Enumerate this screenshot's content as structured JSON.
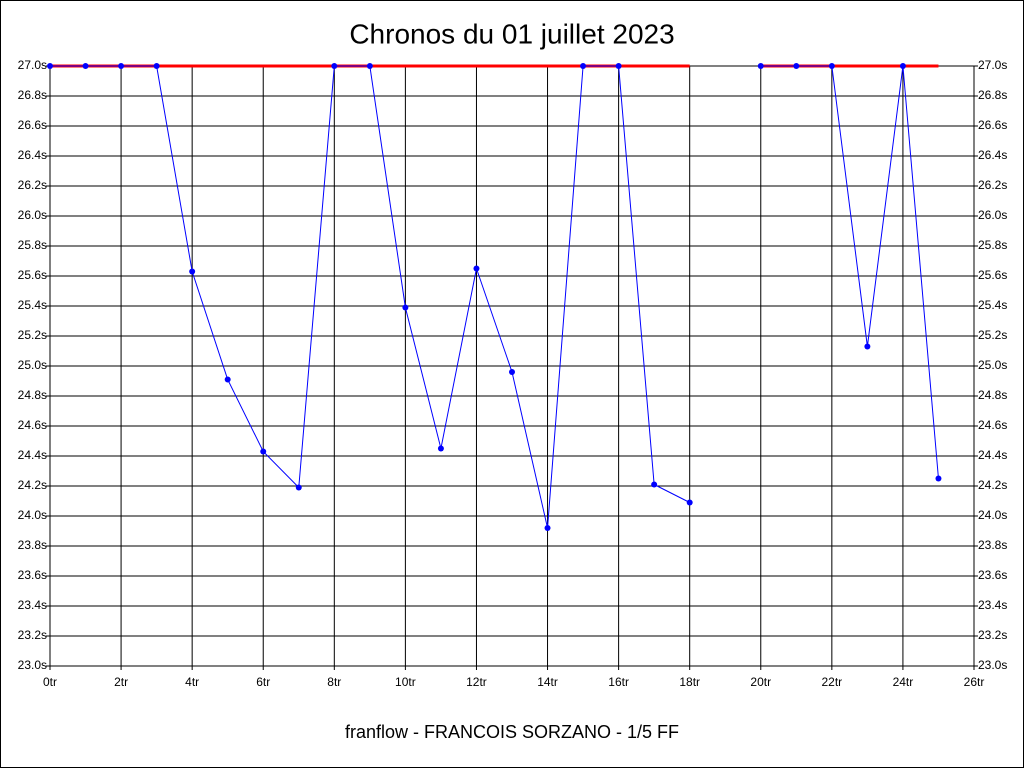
{
  "chart_data": {
    "type": "line",
    "title": "Chronos du 01 juillet 2023",
    "footer": "franflow - FRANCOIS SORZANO - 1/5 FF",
    "x": [
      0,
      1,
      2,
      3,
      4,
      5,
      6,
      7,
      8,
      9,
      10,
      11,
      12,
      13,
      14,
      15,
      16,
      17,
      18,
      19,
      20,
      21,
      22,
      23,
      24,
      25
    ],
    "series": [
      {
        "color": "#ff0000",
        "values": [
          27.0,
          27.0,
          27.0,
          27.0,
          27.0,
          27.0,
          27.0,
          27.0,
          27.0,
          27.0,
          27.0,
          27.0,
          27.0,
          27.0,
          27.0,
          27.0,
          27.0,
          27.0,
          27.0,
          null,
          27.0,
          27.0,
          27.0,
          27.0,
          27.0,
          27.0
        ]
      },
      {
        "color": "#0000ff",
        "values": [
          27.0,
          27.0,
          27.0,
          27.0,
          25.63,
          24.91,
          24.43,
          24.19,
          27.0,
          27.0,
          25.39,
          24.45,
          25.65,
          24.96,
          23.92,
          27.0,
          27.0,
          24.21,
          24.09,
          null,
          27.0,
          27.0,
          27.0,
          25.13,
          27.0,
          24.25
        ]
      }
    ],
    "xlim": [
      0,
      26
    ],
    "xticks": [
      {
        "value": 0,
        "label": "0tr"
      },
      {
        "value": 2,
        "label": "2tr"
      },
      {
        "value": 4,
        "label": "4tr"
      },
      {
        "value": 6,
        "label": "6tr"
      },
      {
        "value": 8,
        "label": "8tr"
      },
      {
        "value": 10,
        "label": "10tr"
      },
      {
        "value": 12,
        "label": "12tr"
      },
      {
        "value": 14,
        "label": "14tr"
      },
      {
        "value": 16,
        "label": "16tr"
      },
      {
        "value": 18,
        "label": "18tr"
      },
      {
        "value": 20,
        "label": "20tr"
      },
      {
        "value": 22,
        "label": "22tr"
      },
      {
        "value": 24,
        "label": "24tr"
      },
      {
        "value": 26,
        "label": "26tr"
      }
    ],
    "ylim": [
      23.0,
      27.0
    ],
    "yticks": [
      {
        "value": 23.0,
        "label": "23.0s"
      },
      {
        "value": 23.2,
        "label": "23.2s"
      },
      {
        "value": 23.4,
        "label": "23.4s"
      },
      {
        "value": 23.6,
        "label": "23.6s"
      },
      {
        "value": 23.8,
        "label": "23.8s"
      },
      {
        "value": 24.0,
        "label": "24.0s"
      },
      {
        "value": 24.2,
        "label": "24.2s"
      },
      {
        "value": 24.4,
        "label": "24.4s"
      },
      {
        "value": 24.6,
        "label": "24.6s"
      },
      {
        "value": 24.8,
        "label": "24.8s"
      },
      {
        "value": 25.0,
        "label": "25.0s"
      },
      {
        "value": 25.2,
        "label": "25.2s"
      },
      {
        "value": 25.4,
        "label": "25.4s"
      },
      {
        "value": 25.6,
        "label": "25.6s"
      },
      {
        "value": 25.8,
        "label": "25.8s"
      },
      {
        "value": 26.0,
        "label": "26.0s"
      },
      {
        "value": 26.2,
        "label": "26.2s"
      },
      {
        "value": 26.4,
        "label": "26.4s"
      },
      {
        "value": 26.6,
        "label": "26.6s"
      },
      {
        "value": 26.8,
        "label": "26.8s"
      },
      {
        "value": 27.0,
        "label": "27.0s"
      }
    ],
    "grid": true
  }
}
